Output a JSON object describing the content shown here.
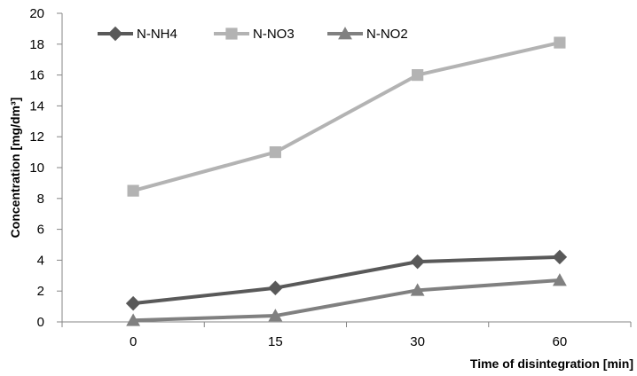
{
  "chart_data": {
    "type": "line",
    "categories": [
      "0",
      "15",
      "30",
      "60"
    ],
    "series": [
      {
        "name": "N-NH4",
        "values": [
          1.2,
          2.2,
          3.9,
          4.2
        ],
        "color": "#595959",
        "marker": "diamond"
      },
      {
        "name": "N-NO3",
        "values": [
          8.5,
          11.0,
          16.0,
          18.1
        ],
        "color": "#b3b3b3",
        "marker": "square"
      },
      {
        "name": "N-NO2",
        "values": [
          0.1,
          0.4,
          2.05,
          2.7
        ],
        "color": "#808080",
        "marker": "triangle"
      }
    ],
    "xlabel": "Time of disintegration [min]",
    "ylabel": "Concentration [mg/dm³]",
    "ylim": [
      0,
      20
    ],
    "yticks": [
      "0",
      "2",
      "4",
      "6",
      "8",
      "10",
      "12",
      "14",
      "16",
      "18",
      "20"
    ],
    "grid": false,
    "legend_position": "top-left"
  }
}
